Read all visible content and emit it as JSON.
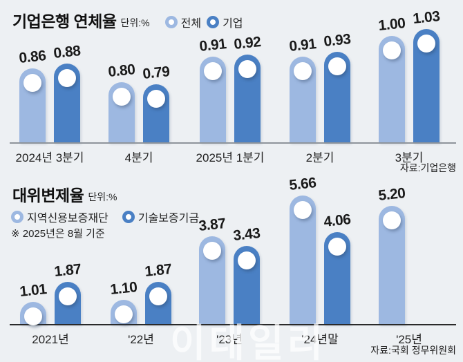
{
  "page": {
    "background": "#edf0f3",
    "watermark": "이데일리"
  },
  "colors": {
    "series_light": "#9db8e1",
    "series_dark": "#4a80c4",
    "axis_top": "#8e949b",
    "axis_bottom": "#2a2a2a"
  },
  "chart_data": [
    {
      "type": "bar",
      "title": "기업은행 연체율",
      "unit": "단위:%",
      "categories": [
        "2024년 3분기",
        "4분기",
        "2025년 1분기",
        "2분기",
        "3분기"
      ],
      "series": [
        {
          "name": "전체",
          "values": [
            0.86,
            0.8,
            0.91,
            0.91,
            1.0
          ]
        },
        {
          "name": "기업",
          "values": [
            0.88,
            0.79,
            0.92,
            0.93,
            1.03
          ]
        }
      ],
      "legend": [
        "전체",
        "기업"
      ],
      "legend_position": "top-right-of-title",
      "grid": false,
      "source": "자료:기업은행"
    },
    {
      "type": "bar",
      "title": "대위변제율",
      "unit": "단위:%",
      "note": "※ 2025년은 8월 기준",
      "categories": [
        "2021년",
        "'22년",
        "'23년",
        "'24년말",
        "'25년"
      ],
      "series": [
        {
          "name": "지역신용보증재단",
          "values": [
            1.01,
            1.1,
            3.87,
            5.66,
            5.2
          ]
        },
        {
          "name": "기술보증기금",
          "values": [
            1.87,
            1.87,
            3.43,
            4.06,
            null
          ]
        }
      ],
      "legend": [
        "지역신용보증재단",
        "기술보증기금"
      ],
      "legend_position": "below-title",
      "grid": false,
      "source": "자료:국회 정무위원회"
    }
  ]
}
